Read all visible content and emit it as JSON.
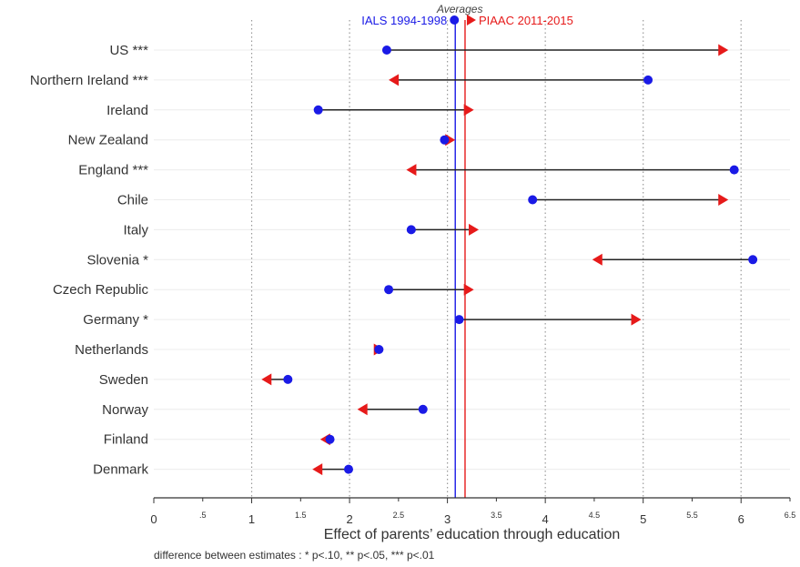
{
  "chart_data": {
    "type": "dot-arrow",
    "xlabel": "Effect of parents’ education through education",
    "xlim": [
      0,
      6.5
    ],
    "x_ticks": [
      {
        "value": 0,
        "label": "0",
        "major": true
      },
      {
        "value": 0.5,
        "label": ".5",
        "major": false
      },
      {
        "value": 1,
        "label": "1",
        "major": true
      },
      {
        "value": 1.5,
        "label": "1.5",
        "major": false
      },
      {
        "value": 2,
        "label": "2",
        "major": true
      },
      {
        "value": 2.5,
        "label": "2.5",
        "major": false
      },
      {
        "value": 3,
        "label": "3",
        "major": true
      },
      {
        "value": 3.5,
        "label": "3.5",
        "major": false
      },
      {
        "value": 4,
        "label": "4",
        "major": true
      },
      {
        "value": 4.5,
        "label": "4.5",
        "major": false
      },
      {
        "value": 5,
        "label": "5",
        "major": true
      },
      {
        "value": 5.5,
        "label": "5.5",
        "major": false
      },
      {
        "value": 6,
        "label": "6",
        "major": true
      },
      {
        "value": 6.5,
        "label": "6.5",
        "major": false
      }
    ],
    "grid": "dotted vertical at whole numbers",
    "categories": [
      "US ***",
      "Northern Ireland ***",
      "Ireland",
      "New Zealand",
      "England ***",
      "Chile",
      "Italy",
      "Slovenia *",
      "Czech Republic",
      "Germany *",
      "Netherlands",
      "Sweden",
      "Norway",
      "Finland",
      "Denmark"
    ],
    "series": [
      {
        "name": "IALS 1994-1998",
        "marker": "circle",
        "values": [
          2.38,
          5.05,
          1.68,
          2.97,
          5.93,
          3.87,
          2.63,
          6.12,
          2.4,
          3.12,
          2.3,
          1.37,
          2.75,
          1.8,
          1.99
        ]
      },
      {
        "name": "PIAAC 2011-2015",
        "marker": "arrow",
        "values": [
          5.87,
          2.4,
          3.27,
          3.08,
          2.58,
          5.87,
          3.32,
          4.48,
          3.27,
          4.98,
          2.35,
          1.1,
          2.08,
          1.7,
          1.62
        ]
      }
    ],
    "averages": {
      "title": "Averages",
      "ials": {
        "label": "IALS 1994-1998",
        "value": 3.08
      },
      "piaac": {
        "label": "PIAAC 2011-2015",
        "value": 3.18
      }
    },
    "footnote": "difference between estimates : * p<.10, ** p<.05, *** p<.01",
    "colors": {
      "ials": "#1a1ae6",
      "piaac": "#e61a1a",
      "connector": "#222222",
      "grid": "#cccccc",
      "axis": "#333333"
    }
  }
}
